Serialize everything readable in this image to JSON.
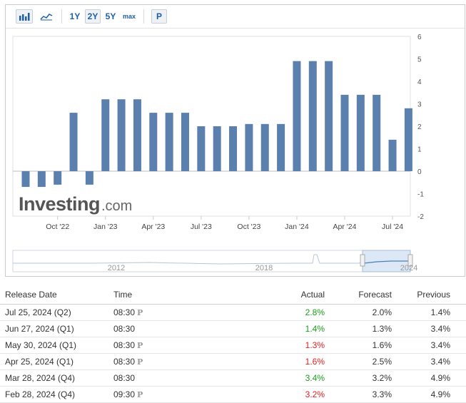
{
  "toolbar": {
    "ranges": [
      "1Y",
      "2Y",
      "5Y",
      "max"
    ],
    "active_range": "2Y",
    "p_button": "P"
  },
  "watermark": {
    "brand": "Investing",
    "suffix": ".com"
  },
  "chart_data": {
    "type": "bar",
    "x_tick_labels": [
      "Oct '22",
      "Jan '23",
      "Apr '23",
      "Jul '23",
      "Oct '23",
      "Jan '24",
      "Apr '24",
      "Jul '24"
    ],
    "values": [
      -0.7,
      -0.7,
      -0.6,
      2.6,
      -0.6,
      3.2,
      3.2,
      3.2,
      2.6,
      2.6,
      2.6,
      2.0,
      2.0,
      2.0,
      2.1,
      2.1,
      2.1,
      4.9,
      4.9,
      4.9,
      3.4,
      3.4,
      3.4,
      1.4,
      2.8
    ],
    "y_ticks": [
      6,
      5,
      4,
      3,
      2,
      1,
      0,
      -1,
      -2
    ],
    "ylim": [
      -2,
      6
    ],
    "bar_color": "#5b80ad"
  },
  "navigator": {
    "labels": [
      "2012",
      "2018",
      "2024"
    ]
  },
  "table": {
    "headers": {
      "date": "Release Date",
      "time": "Time",
      "actual": "Actual",
      "forecast": "Forecast",
      "previous": "Previous"
    },
    "p_symbol": "P",
    "colors": {
      "green": "#1a9e1a",
      "red": "#e02020"
    },
    "rows": [
      {
        "date": "Jul 25, 2024 (Q2)",
        "time": "08:30",
        "prelim": true,
        "actual": "2.8%",
        "actual_color": "green",
        "forecast": "2.0%",
        "previous": "1.4%"
      },
      {
        "date": "Jun 27, 2024 (Q1)",
        "time": "08:30",
        "prelim": false,
        "actual": "1.4%",
        "actual_color": "green",
        "forecast": "1.3%",
        "previous": "3.4%"
      },
      {
        "date": "May 30, 2024 (Q1)",
        "time": "08:30",
        "prelim": true,
        "actual": "1.3%",
        "actual_color": "red",
        "forecast": "1.6%",
        "previous": "3.4%"
      },
      {
        "date": "Apr 25, 2024 (Q1)",
        "time": "08:30",
        "prelim": true,
        "actual": "1.6%",
        "actual_color": "red",
        "forecast": "2.5%",
        "previous": "3.4%"
      },
      {
        "date": "Mar 28, 2024 (Q4)",
        "time": "08:30",
        "prelim": false,
        "actual": "3.4%",
        "actual_color": "green",
        "forecast": "3.2%",
        "previous": "4.9%"
      },
      {
        "date": "Feb 28, 2024 (Q4)",
        "time": "09:30",
        "prelim": true,
        "actual": "3.2%",
        "actual_color": "red",
        "forecast": "3.3%",
        "previous": "4.9%"
      }
    ]
  }
}
